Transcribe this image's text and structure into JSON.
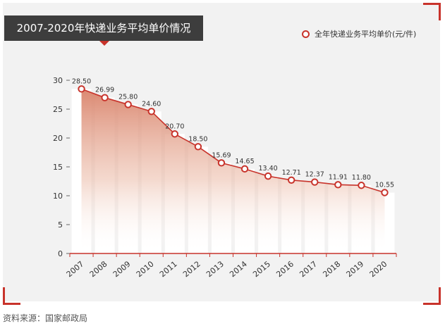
{
  "title": "2007-2020年快递业务平均单价情况",
  "legend_label": "全年快递业务平均单价(元/件)",
  "source": "资料来源：国家邮政局",
  "colors": {
    "accent": "#c8332b",
    "area_top": "#d9826a",
    "bar": "#ffffff",
    "title_bg": "#3d3d3d",
    "panel_bg": "#f2f2f2"
  },
  "chart_data": {
    "type": "line",
    "x": [
      "2007",
      "2008",
      "2009",
      "2010",
      "2011",
      "2012",
      "2013",
      "2014",
      "2015",
      "2016",
      "2017",
      "2018",
      "2019",
      "2020"
    ],
    "series": [
      {
        "name": "全年快递业务平均单价(元/件)",
        "values": [
          28.5,
          26.99,
          25.8,
          24.6,
          20.7,
          18.5,
          15.69,
          14.65,
          13.4,
          12.71,
          12.37,
          11.91,
          11.8,
          10.55
        ],
        "labels": [
          "28.50",
          "26.99",
          "25.80",
          "24.60",
          "20.70",
          "18.50",
          "15.69",
          "14.65",
          "13.40",
          "12.71",
          "12.37",
          "11.91",
          "11.80",
          "10.55"
        ]
      }
    ],
    "y_ticks": [
      "0",
      "5",
      "10",
      "15",
      "20",
      "25",
      "30"
    ],
    "ylim": [
      0,
      30
    ],
    "grid": false,
    "legend": "top-right"
  }
}
